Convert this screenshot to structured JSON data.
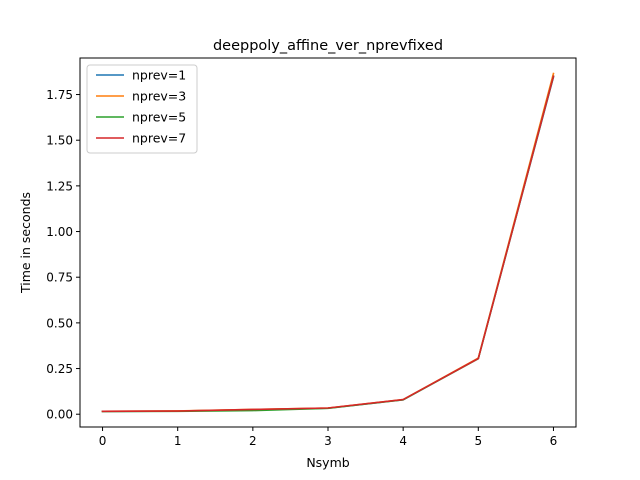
{
  "chart_data": {
    "type": "line",
    "title": "deeppoly_affine_ver_nprevfixed",
    "xlabel": "Nsymb",
    "ylabel": "Time in seconds",
    "x": [
      0,
      1,
      2,
      3,
      4,
      5,
      6
    ],
    "xlim": [
      -0.3,
      6.3
    ],
    "ylim": [
      -0.07,
      1.95
    ],
    "xticks": [
      "0",
      "1",
      "2",
      "3",
      "4",
      "5",
      "6"
    ],
    "yticks": [
      "0.00",
      "0.25",
      "0.50",
      "0.75",
      "1.00",
      "1.25",
      "1.50",
      "1.75"
    ],
    "grid": false,
    "legend_position": "top-left",
    "series": [
      {
        "name": "nprev=1",
        "color": "#1f77b4",
        "values": [
          0.015,
          0.017,
          0.025,
          0.033,
          0.079,
          0.305,
          1.845
        ]
      },
      {
        "name": "nprev=3",
        "color": "#ff7f0e",
        "values": [
          0.016,
          0.018,
          0.026,
          0.034,
          0.08,
          0.307,
          1.865
        ]
      },
      {
        "name": "nprev=5",
        "color": "#2ca02c",
        "values": [
          0.015,
          0.016,
          0.02,
          0.032,
          0.079,
          0.304,
          1.85
        ]
      },
      {
        "name": "nprev=7",
        "color": "#d62728",
        "values": [
          0.016,
          0.017,
          0.026,
          0.034,
          0.08,
          0.305,
          1.85
        ]
      }
    ]
  }
}
